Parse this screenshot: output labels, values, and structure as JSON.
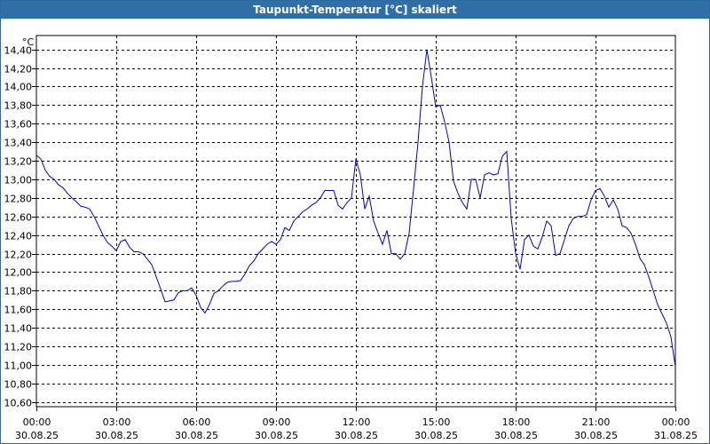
{
  "window": {
    "title": "Taupunkt-Temperatur [°C] skaliert"
  },
  "colors": {
    "title_bar": "#2f6fa5",
    "line": "#0000cc",
    "grid": "#000000"
  },
  "chart_data": {
    "type": "line",
    "title": "Taupunkt-Temperatur [°C] skaliert",
    "y_unit": "°C",
    "ylim": [
      10.55,
      14.55
    ],
    "xlim": [
      "2025-08-30 00:00",
      "2025-08-31 00:00"
    ],
    "grid": true,
    "y_ticks": [
      "10,60",
      "10,80",
      "11,00",
      "11,20",
      "11,40",
      "11,60",
      "11,80",
      "12,00",
      "12,20",
      "12,40",
      "12,60",
      "12,80",
      "13,00",
      "13,20",
      "13,40",
      "13,60",
      "13,80",
      "14,00",
      "14,20",
      "14,40"
    ],
    "x_ticks": [
      {
        "time": "00:00",
        "date": "30.08.25"
      },
      {
        "time": "03:00",
        "date": "30.08.25"
      },
      {
        "time": "06:00",
        "date": "30.08.25"
      },
      {
        "time": "09:00",
        "date": "30.08.25"
      },
      {
        "time": "12:00",
        "date": "30.08.25"
      },
      {
        "time": "15:00",
        "date": "30.08.25"
      },
      {
        "time": "18:00",
        "date": "30.08.25"
      },
      {
        "time": "21:00",
        "date": "30.08.25"
      },
      {
        "time": "00:00",
        "date": "31.08.25"
      }
    ],
    "series": [
      {
        "points": [
          [
            "00:00",
            13.26
          ],
          [
            "00:10",
            13.22
          ],
          [
            "00:20",
            13.1
          ],
          [
            "00:30",
            13.03
          ],
          [
            "00:40",
            13.0
          ],
          [
            "00:50",
            12.94
          ],
          [
            "01:00",
            12.91
          ],
          [
            "01:10",
            12.85
          ],
          [
            "01:20",
            12.8
          ],
          [
            "01:30",
            12.76
          ],
          [
            "01:40",
            12.71
          ],
          [
            "01:50",
            12.7
          ],
          [
            "02:00",
            12.68
          ],
          [
            "02:10",
            12.6
          ],
          [
            "02:20",
            12.5
          ],
          [
            "02:30",
            12.4
          ],
          [
            "02:40",
            12.32
          ],
          [
            "02:50",
            12.28
          ],
          [
            "03:00",
            12.23
          ],
          [
            "03:10",
            12.33
          ],
          [
            "03:20",
            12.35
          ],
          [
            "03:30",
            12.27
          ],
          [
            "03:40",
            12.22
          ],
          [
            "03:50",
            12.22
          ],
          [
            "04:00",
            12.2
          ],
          [
            "04:10",
            12.14
          ],
          [
            "04:20",
            12.08
          ],
          [
            "04:30",
            11.95
          ],
          [
            "04:40",
            11.82
          ],
          [
            "04:50",
            11.68
          ],
          [
            "05:00",
            11.69
          ],
          [
            "05:10",
            11.7
          ],
          [
            "05:20",
            11.78
          ],
          [
            "05:30",
            11.8
          ],
          [
            "05:40",
            11.8
          ],
          [
            "05:50",
            11.83
          ],
          [
            "06:00",
            11.75
          ],
          [
            "06:10",
            11.62
          ],
          [
            "06:20",
            11.56
          ],
          [
            "06:30",
            11.65
          ],
          [
            "06:40",
            11.77
          ],
          [
            "06:50",
            11.8
          ],
          [
            "07:00",
            11.85
          ],
          [
            "07:10",
            11.89
          ],
          [
            "07:20",
            11.9
          ],
          [
            "07:30",
            11.9
          ],
          [
            "07:40",
            11.91
          ],
          [
            "07:50",
            11.98
          ],
          [
            "08:00",
            12.07
          ],
          [
            "08:10",
            12.12
          ],
          [
            "08:20",
            12.2
          ],
          [
            "08:30",
            12.25
          ],
          [
            "08:40",
            12.3
          ],
          [
            "08:50",
            12.33
          ],
          [
            "09:00",
            12.3
          ],
          [
            "09:10",
            12.35
          ],
          [
            "09:20",
            12.48
          ],
          [
            "09:30",
            12.45
          ],
          [
            "09:40",
            12.55
          ],
          [
            "09:50",
            12.6
          ],
          [
            "10:00",
            12.65
          ],
          [
            "10:10",
            12.68
          ],
          [
            "10:20",
            12.72
          ],
          [
            "10:30",
            12.75
          ],
          [
            "10:40",
            12.8
          ],
          [
            "10:50",
            12.88
          ],
          [
            "11:00",
            12.88
          ],
          [
            "11:10",
            12.88
          ],
          [
            "11:20",
            12.72
          ],
          [
            "11:30",
            12.68
          ],
          [
            "11:40",
            12.75
          ],
          [
            "11:50",
            12.8
          ],
          [
            "12:00",
            13.22
          ],
          [
            "12:10",
            13.05
          ],
          [
            "12:20",
            12.68
          ],
          [
            "12:30",
            12.82
          ],
          [
            "12:40",
            12.55
          ],
          [
            "12:50",
            12.42
          ],
          [
            "13:00",
            12.3
          ],
          [
            "13:10",
            12.45
          ],
          [
            "13:20",
            12.2
          ],
          [
            "13:30",
            12.2
          ],
          [
            "13:40",
            12.14
          ],
          [
            "13:50",
            12.2
          ],
          [
            "14:00",
            12.42
          ],
          [
            "14:10",
            12.9
          ],
          [
            "14:20",
            13.4
          ],
          [
            "14:30",
            14.0
          ],
          [
            "14:40",
            14.4
          ],
          [
            "14:50",
            14.1
          ],
          [
            "15:00",
            13.78
          ],
          [
            "15:10",
            13.8
          ],
          [
            "15:20",
            13.62
          ],
          [
            "15:30",
            13.4
          ],
          [
            "15:40",
            12.98
          ],
          [
            "15:50",
            12.85
          ],
          [
            "16:00",
            12.75
          ],
          [
            "16:10",
            12.68
          ],
          [
            "16:20",
            13.0
          ],
          [
            "16:30",
            13.0
          ],
          [
            "16:40",
            12.8
          ],
          [
            "16:50",
            13.05
          ],
          [
            "17:00",
            13.07
          ],
          [
            "17:10",
            13.05
          ],
          [
            "17:20",
            13.06
          ],
          [
            "17:30",
            13.25
          ],
          [
            "17:40",
            13.3
          ],
          [
            "17:50",
            12.58
          ],
          [
            "18:00",
            12.2
          ],
          [
            "18:10",
            12.03
          ],
          [
            "18:20",
            12.35
          ],
          [
            "18:30",
            12.4
          ],
          [
            "18:40",
            12.28
          ],
          [
            "18:50",
            12.25
          ],
          [
            "19:00",
            12.38
          ],
          [
            "19:10",
            12.55
          ],
          [
            "19:20",
            12.5
          ],
          [
            "19:30",
            12.18
          ],
          [
            "19:40",
            12.2
          ],
          [
            "19:50",
            12.35
          ],
          [
            "20:00",
            12.5
          ],
          [
            "20:10",
            12.58
          ],
          [
            "20:20",
            12.6
          ],
          [
            "20:30",
            12.6
          ],
          [
            "20:40",
            12.62
          ],
          [
            "20:50",
            12.78
          ],
          [
            "21:00",
            12.88
          ],
          [
            "21:10",
            12.9
          ],
          [
            "21:20",
            12.82
          ],
          [
            "21:30",
            12.7
          ],
          [
            "21:40",
            12.78
          ],
          [
            "21:50",
            12.68
          ],
          [
            "22:00",
            12.5
          ],
          [
            "22:10",
            12.48
          ],
          [
            "22:20",
            12.42
          ],
          [
            "22:30",
            12.3
          ],
          [
            "22:40",
            12.15
          ],
          [
            "22:50",
            12.08
          ],
          [
            "23:00",
            11.95
          ],
          [
            "23:10",
            11.8
          ],
          [
            "23:20",
            11.65
          ],
          [
            "23:30",
            11.55
          ],
          [
            "23:40",
            11.45
          ],
          [
            "23:50",
            11.3
          ],
          [
            "00:00+",
            10.98
          ]
        ]
      }
    ]
  }
}
